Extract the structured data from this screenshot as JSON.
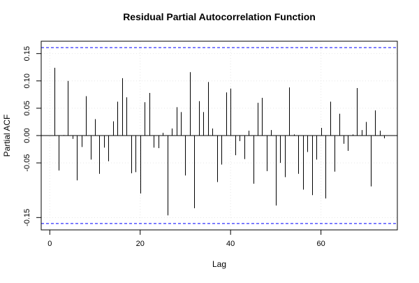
{
  "chart_data": {
    "type": "bar",
    "title": "Residual Partial Autocorrelation Function",
    "xlabel": "Lag",
    "ylabel": "Partial ACF",
    "xlim": [
      -1.9,
      76.9
    ],
    "ylim": [
      -0.1726,
      0.1726
    ],
    "xticks": [
      0,
      20,
      40,
      60
    ],
    "yticks": [
      -0.15,
      -0.05,
      0.0,
      0.05,
      0.1,
      0.15
    ],
    "ytick_labels": [
      "-0.15",
      "-0.05",
      "0.00",
      "0.05",
      "0.10",
      "0.15"
    ],
    "grid": true,
    "confidence_limits": [
      0.161,
      -0.161
    ],
    "lags": [
      1,
      2,
      3,
      4,
      5,
      6,
      7,
      8,
      9,
      10,
      11,
      12,
      13,
      14,
      15,
      16,
      17,
      18,
      19,
      20,
      21,
      22,
      23,
      24,
      25,
      26,
      27,
      28,
      29,
      30,
      31,
      32,
      33,
      34,
      35,
      36,
      37,
      38,
      39,
      40,
      41,
      42,
      43,
      44,
      45,
      46,
      47,
      48,
      49,
      50,
      51,
      52,
      53,
      54,
      55,
      56,
      57,
      58,
      59,
      60,
      61,
      62,
      63,
      64,
      65,
      66,
      67,
      68,
      69,
      70,
      71,
      72,
      73,
      74
    ],
    "values": [
      0.124,
      -0.064,
      0.001,
      0.1,
      -0.006,
      -0.082,
      -0.021,
      0.072,
      -0.044,
      0.03,
      -0.07,
      -0.022,
      -0.047,
      0.026,
      0.062,
      0.105,
      0.07,
      -0.069,
      -0.067,
      -0.106,
      0.061,
      0.078,
      -0.022,
      -0.023,
      0.005,
      -0.146,
      0.013,
      0.052,
      0.043,
      -0.073,
      0.116,
      -0.133,
      0.063,
      0.043,
      0.098,
      0.013,
      -0.085,
      -0.053,
      0.079,
      0.086,
      -0.036,
      -0.01,
      -0.043,
      0.009,
      -0.088,
      0.06,
      0.069,
      -0.065,
      0.01,
      -0.128,
      -0.05,
      -0.076,
      0.088,
      0.002,
      -0.07,
      -0.099,
      -0.03,
      -0.109,
      -0.044,
      0.014,
      -0.115,
      0.062,
      -0.066,
      0.04,
      -0.015,
      -0.028,
      0.002,
      0.087,
      0.01,
      0.025,
      -0.093,
      0.046,
      0.009,
      -0.005
    ]
  }
}
